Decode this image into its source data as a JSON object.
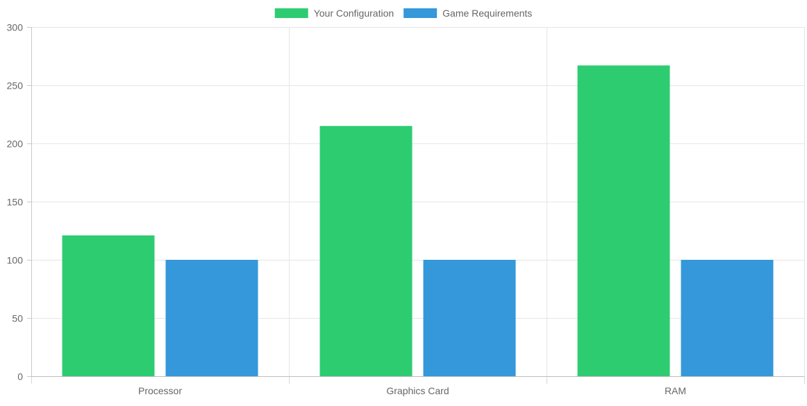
{
  "chart_data": {
    "type": "bar",
    "categories": [
      "Processor",
      "Graphics Card",
      "RAM"
    ],
    "series": [
      {
        "name": "Your Configuration",
        "values": [
          121,
          215,
          267
        ],
        "color": "#2ecc71"
      },
      {
        "name": "Game Requirements",
        "values": [
          100,
          100,
          100
        ],
        "color": "#3498db"
      }
    ],
    "ylim": [
      0,
      300
    ],
    "y_ticks": [
      "0",
      "50",
      "100",
      "150",
      "200",
      "250",
      "300"
    ],
    "grid": true,
    "legend_position": "top-center"
  }
}
